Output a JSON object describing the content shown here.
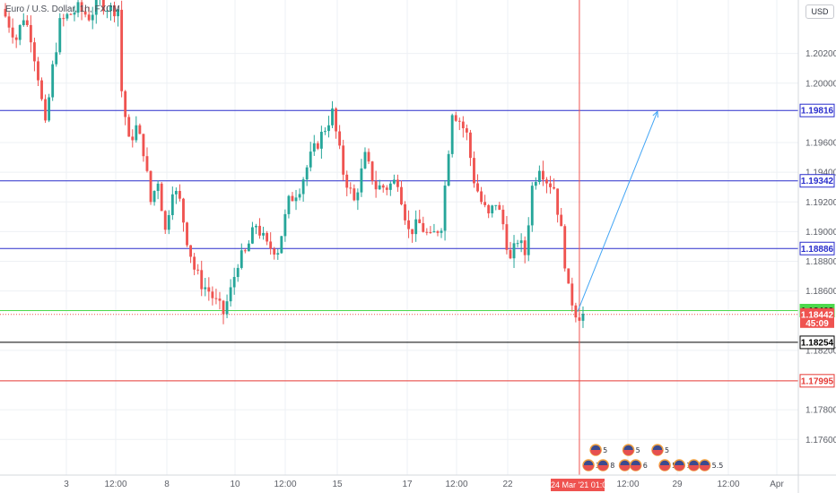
{
  "legend": {
    "symbol": "Euro / U.S. Dollar, 1h, FXCM"
  },
  "currency": "USD",
  "price_axis": {
    "min": 1.1736,
    "max": 1.2056,
    "ticks": [
      "1.20200",
      "1.20000",
      "1.19600",
      "1.19400",
      "1.19200",
      "1.19000",
      "1.18800",
      "1.18600",
      "1.18200",
      "1.17800",
      "1.17600"
    ]
  },
  "time_axis": {
    "labels": [
      "3",
      "12:00",
      "8",
      "10",
      "12:00",
      "15",
      "17",
      "12:00",
      "22",
      "12:00",
      "29",
      "12:00",
      "Apr"
    ],
    "cursor_label": "24 Mar '21  01:00"
  },
  "levels": [
    {
      "price": 1.19816,
      "label": "1.19816",
      "color": "#2a2ecc",
      "text_color": "#2a2ecc",
      "tag_bg": "#ffffff",
      "tag_border": "#2a2ecc"
    },
    {
      "price": 1.19342,
      "label": "1.19342",
      "color": "#2a2ecc",
      "text_color": "#2a2ecc",
      "tag_bg": "#ffffff",
      "tag_border": "#2a2ecc"
    },
    {
      "price": 1.18886,
      "label": "1.18886",
      "color": "#2a2ecc",
      "text_color": "#2a2ecc",
      "tag_bg": "#ffffff",
      "tag_border": "#2a2ecc"
    },
    {
      "price": 1.18468,
      "label": "1.18468",
      "color": "#4cd94c",
      "text_color": "#000000",
      "tag_bg": "#4cd94c",
      "tag_border": "#4cd94c"
    },
    {
      "price": 1.18254,
      "label": "1.18254",
      "color": "#000000",
      "text_color": "#000000",
      "tag_bg": "#ffffff",
      "tag_border": "#000000"
    },
    {
      "price": 1.17995,
      "label": "1.17995",
      "color": "#e53935",
      "text_color": "#e53935",
      "tag_bg": "#ffffff",
      "tag_border": "#e53935"
    }
  ],
  "last_price": {
    "label": "1.18442",
    "countdown": "45:09",
    "price": 1.18442,
    "color": "#ef5350"
  },
  "projection": {
    "from_bar": 158,
    "from_price": 1.1846,
    "to_bar": 180,
    "to_price": 1.1981,
    "color": "#42a5f5"
  },
  "cursor": {
    "bar": 158,
    "color": "#ef5350"
  },
  "colors": {
    "up": "#26a69a",
    "down": "#ef5350",
    "grid": "#eef0f4"
  },
  "events": [
    {
      "label": "5",
      "bar": 163,
      "row": 1
    },
    {
      "label": "5",
      "bar": 172,
      "row": 1
    },
    {
      "label": "5",
      "bar": 180,
      "row": 1
    },
    {
      "label": "3",
      "bar": 161,
      "row": 2
    },
    {
      "label": "8",
      "bar": 165,
      "row": 2
    },
    {
      "label": "4",
      "bar": 171,
      "row": 2
    },
    {
      "label": "6",
      "bar": 174,
      "row": 2
    },
    {
      "label": "5",
      "bar": 182,
      "row": 2
    },
    {
      "label": "10",
      "bar": 186,
      "row": 2
    },
    {
      "label": "5",
      "bar": 190,
      "row": 2
    },
    {
      "label": "5.5",
      "bar": 193,
      "row": 2
    }
  ],
  "chart_data": {
    "type": "candlestick",
    "title": "Euro / U.S. Dollar, 1h, FXCM",
    "ylim": [
      1.1736,
      1.2056
    ],
    "bars": 160,
    "anchors": [
      [
        0,
        1.205
      ],
      [
        2,
        1.204
      ],
      [
        4,
        1.203
      ],
      [
        6,
        1.2045
      ],
      [
        8,
        1.2032
      ],
      [
        10,
        1.2005
      ],
      [
        12,
        1.197
      ],
      [
        14,
        1.201
      ],
      [
        16,
        1.204
      ],
      [
        18,
        1.2045
      ],
      [
        21,
        1.205
      ],
      [
        24,
        1.2045
      ],
      [
        27,
        1.2055
      ],
      [
        30,
        1.205
      ],
      [
        32,
        1.205
      ],
      [
        33,
        1.1995
      ],
      [
        35,
        1.196
      ],
      [
        37,
        1.197
      ],
      [
        39,
        1.1955
      ],
      [
        41,
        1.192
      ],
      [
        43,
        1.1935
      ],
      [
        45,
        1.19
      ],
      [
        47,
        1.193
      ],
      [
        49,
        1.192
      ],
      [
        51,
        1.1895
      ],
      [
        53,
        1.1875
      ],
      [
        55,
        1.1865
      ],
      [
        57,
        1.186
      ],
      [
        59,
        1.1852
      ],
      [
        61,
        1.1845
      ],
      [
        63,
        1.186
      ],
      [
        65,
        1.188
      ],
      [
        67,
        1.1885
      ],
      [
        70,
        1.1905
      ],
      [
        73,
        1.189
      ],
      [
        76,
        1.1888
      ],
      [
        79,
        1.192
      ],
      [
        82,
        1.193
      ],
      [
        85,
        1.195
      ],
      [
        88,
        1.1965
      ],
      [
        91,
        1.198
      ],
      [
        94,
        1.194
      ],
      [
        97,
        1.192
      ],
      [
        100,
        1.195
      ],
      [
        103,
        1.193
      ],
      [
        106,
        1.193
      ],
      [
        109,
        1.1935
      ],
      [
        112,
        1.19
      ],
      [
        115,
        1.1905
      ],
      [
        118,
        1.1895
      ],
      [
        121,
        1.1905
      ],
      [
        124,
        1.1982
      ],
      [
        126,
        1.1975
      ],
      [
        128,
        1.1965
      ],
      [
        130,
        1.1935
      ],
      [
        132,
        1.192
      ],
      [
        134,
        1.191
      ],
      [
        136,
        1.192
      ],
      [
        138,
        1.1905
      ],
      [
        140,
        1.188
      ],
      [
        142,
        1.1895
      ],
      [
        144,
        1.1885
      ],
      [
        146,
        1.193
      ],
      [
        148,
        1.1945
      ],
      [
        150,
        1.1935
      ],
      [
        152,
        1.193
      ],
      [
        154,
        1.19
      ],
      [
        156,
        1.186
      ],
      [
        158,
        1.1846
      ],
      [
        159,
        1.1844
      ]
    ]
  }
}
